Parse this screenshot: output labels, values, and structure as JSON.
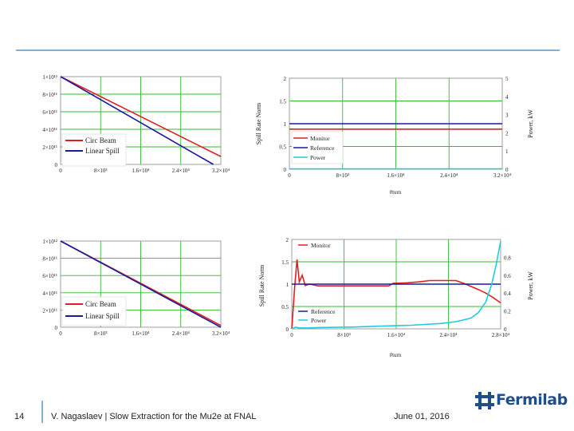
{
  "footer": {
    "page_number": "14",
    "text": "V. Nagaslaev | Slow Extraction for the Mu2e at FNAL",
    "date": "June 01, 2016",
    "logo_text": "Fermilab"
  },
  "colors": {
    "circ_beam": "#e02020",
    "linear_spill": "#1a1aa0",
    "monitor": "#e02020",
    "reference": "#1a1aa0",
    "power": "#22ccdd",
    "grid": "#33bb33",
    "accent": "#7fb3d5",
    "logo": "#1f4e8c"
  },
  "chart_data": [
    {
      "type": "line",
      "xlim": [
        0,
        32000
      ],
      "ylim": [
        0,
        1000000000000.0
      ],
      "grid": true,
      "legend_position": "bottom-left",
      "x_ticks": [
        "0",
        "8×10³",
        "1.6×10⁴",
        "2.4×10⁴",
        "3.2×10⁴"
      ],
      "y_ticks": [
        "0",
        "2×10¹¹",
        "4×10¹¹",
        "6×10¹¹",
        "8×10¹¹",
        "1×10¹²"
      ],
      "series": [
        {
          "name": "Circ Beam",
          "x": [
            0,
            32000
          ],
          "y": [
            1000000000000.0,
            90000000000.0
          ]
        },
        {
          "name": "Linear Spill",
          "x": [
            0,
            30500
          ],
          "y": [
            1000000000000.0,
            0.0
          ]
        }
      ]
    },
    {
      "type": "line",
      "xlabel": "#turn",
      "ylabel": "Spill Rate Norm",
      "y2label": "Power, kW",
      "xlim": [
        0,
        32000
      ],
      "ylim": [
        0,
        2
      ],
      "y2lim": [
        0,
        5
      ],
      "grid": true,
      "legend_position": "center-right",
      "x_ticks": [
        "0",
        "8×10³",
        "1.6×10⁴",
        "2.4×10⁴",
        "3.2×10⁴"
      ],
      "y_ticks": [
        "0",
        "0.5",
        "1",
        "1.5",
        "2"
      ],
      "y2_ticks": [
        "0",
        "1",
        "2",
        "3",
        "4",
        "5"
      ],
      "series": [
        {
          "name": "Monitor",
          "x": [
            0,
            32000
          ],
          "y": [
            0.88,
            0.88
          ]
        },
        {
          "name": "Reference",
          "x": [
            0,
            32000
          ],
          "y": [
            1.0,
            1.0
          ]
        },
        {
          "name": "Power",
          "x": [
            0,
            32000
          ],
          "y": [
            0.02,
            0.02
          ]
        }
      ]
    },
    {
      "type": "line",
      "xlim": [
        0,
        28000
      ],
      "ylim": [
        0,
        1000000000000.0
      ],
      "grid": true,
      "legend_position": "bottom-left",
      "x_ticks": [
        "0",
        "8×10³",
        "1.6×10⁴",
        "2.4×10⁴",
        "3.2×10⁴"
      ],
      "y_ticks": [
        "0",
        "2×10¹¹",
        "4×10¹¹",
        "6×10¹¹",
        "8×10¹¹",
        "1×10¹²"
      ],
      "series": [
        {
          "name": "Circ Beam",
          "x": [
            0,
            28000
          ],
          "y": [
            1000000000000.0,
            20000000000.0
          ]
        },
        {
          "name": "Linear Spill",
          "x": [
            0,
            28000
          ],
          "y": [
            1000000000000.0,
            0.0
          ]
        }
      ]
    },
    {
      "type": "line",
      "xlabel": "#turn",
      "ylabel": "Spill Rate Norm",
      "y2label": "Power, kW",
      "xlim": [
        0,
        28000
      ],
      "ylim": [
        0,
        2
      ],
      "y2lim": [
        0,
        1
      ],
      "grid": true,
      "legend_position": "top-left",
      "x_ticks": [
        "0",
        "8×10³",
        "1.6×10⁴",
        "2.4×10⁴",
        "2.8×10⁴"
      ],
      "y_ticks": [
        "0",
        "0.5",
        "1",
        "1.5",
        "2"
      ],
      "y2_ticks": [
        "0",
        "0.2",
        "0.4",
        "0.6",
        "0.8"
      ],
      "series": [
        {
          "name": "Monitor",
          "x": [
            0,
            400,
            700,
            1000,
            1400,
            1800,
            2400,
            3500,
            6000,
            10000,
            13000,
            13600,
            15500,
            17000,
            18500,
            20000,
            22000,
            23000,
            24000,
            25000,
            26000,
            27000,
            28000
          ],
          "y": [
            0.0,
            0.95,
            1.55,
            1.05,
            1.2,
            0.97,
            1.0,
            0.96,
            0.96,
            0.96,
            0.96,
            1.02,
            1.03,
            1.05,
            1.08,
            1.08,
            1.08,
            1.02,
            0.95,
            0.88,
            0.8,
            0.7,
            0.58
          ]
        },
        {
          "name": "Reference",
          "x": [
            0,
            28000
          ],
          "y": [
            1.0,
            1.0
          ]
        },
        {
          "name": "Power",
          "x": [
            0,
            500,
            1000,
            2000,
            4000,
            8000,
            12000,
            16000,
            20000,
            22000,
            24000,
            25000,
            26000,
            26800,
            27400,
            28000
          ],
          "y": [
            0.0,
            0.02,
            0.01,
            0.01,
            0.015,
            0.02,
            0.03,
            0.04,
            0.06,
            0.08,
            0.12,
            0.18,
            0.3,
            0.5,
            0.72,
            0.98
          ]
        }
      ]
    }
  ]
}
